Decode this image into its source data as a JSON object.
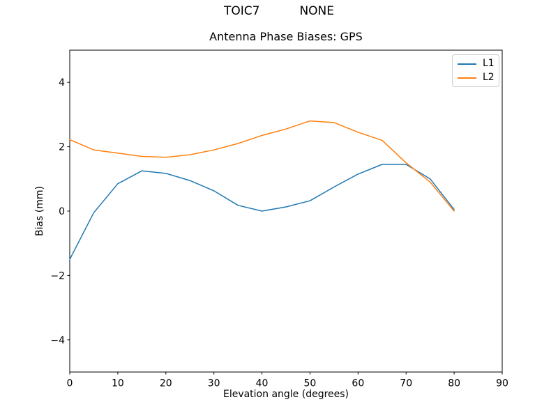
{
  "chart_data": {
    "type": "line",
    "suptitle_left": "TOIC7",
    "suptitle_right": "NONE",
    "title": "Antenna Phase Biases: GPS",
    "xlabel": "Elevation angle (degrees)",
    "ylabel": "Bias (mm)",
    "xlim": [
      0,
      90
    ],
    "ylim": [
      -5,
      5
    ],
    "xticks": [
      0,
      10,
      20,
      30,
      40,
      50,
      60,
      70,
      80,
      90
    ],
    "yticks": [
      -4,
      -2,
      0,
      2,
      4
    ],
    "grid": false,
    "legend_position": "upper right",
    "x": [
      0,
      5,
      10,
      15,
      20,
      25,
      30,
      35,
      40,
      45,
      50,
      55,
      60,
      65,
      70,
      75,
      80
    ],
    "series": [
      {
        "name": "L1",
        "color": "#1f77b4",
        "values": [
          -1.5,
          -0.05,
          0.85,
          1.25,
          1.17,
          0.95,
          0.63,
          0.18,
          0.0,
          0.13,
          0.32,
          0.75,
          1.15,
          1.45,
          1.45,
          1.0,
          0.05
        ]
      },
      {
        "name": "L2",
        "color": "#ff7f0e",
        "values": [
          2.22,
          1.9,
          1.8,
          1.7,
          1.67,
          1.75,
          1.9,
          2.1,
          2.35,
          2.55,
          2.8,
          2.75,
          2.45,
          2.2,
          1.5,
          0.9,
          0.0
        ]
      }
    ],
    "axis_color": "#000000",
    "legend_border_color": "#cccccc"
  }
}
